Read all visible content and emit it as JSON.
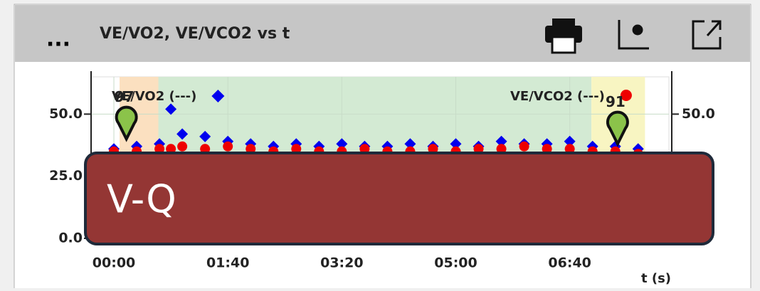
{
  "header": {
    "menu": "...",
    "title": "VE/VO2, VE/VCO2 vs t"
  },
  "chart_data": {
    "type": "scatter",
    "xlabel": "t (s)",
    "xlim": [
      -20,
      487
    ],
    "xticks": [
      {
        "value": 0,
        "label": "00:00"
      },
      {
        "value": 100,
        "label": "01:40"
      },
      {
        "value": 200,
        "label": "03:20"
      },
      {
        "value": 300,
        "label": "05:00"
      },
      {
        "value": 400,
        "label": "06:40"
      }
    ],
    "ylim": [
      0,
      65
    ],
    "yticks": [
      {
        "value": 0,
        "label": "0.0"
      },
      {
        "value": 25,
        "label": "25.0"
      },
      {
        "value": 50,
        "label": "50.0"
      }
    ],
    "y2lim": [
      0,
      65
    ],
    "y2ticks": [
      {
        "value": 50,
        "label": "50.0"
      }
    ],
    "regions": [
      {
        "start": 5,
        "end": 39,
        "color": "#fbe0c0"
      },
      {
        "start": 39,
        "end": 419,
        "color": "#d3ead3"
      },
      {
        "start": 419,
        "end": 466,
        "color": "#f8f5c2"
      }
    ],
    "series": [
      {
        "name": "VE/VO2 (---)",
        "color": "#0000ee",
        "marker": "diamond",
        "x": [
          0,
          20,
          40,
          50,
          60,
          80,
          100,
          120,
          140,
          160,
          180,
          200,
          220,
          240,
          260,
          280,
          300,
          320,
          340,
          360,
          380,
          400,
          420,
          440,
          460
        ],
        "values": [
          36,
          37,
          38,
          52,
          42,
          41,
          39,
          38,
          37,
          38,
          37,
          38,
          37,
          37,
          38,
          37,
          38,
          37,
          39,
          38,
          38,
          39,
          37,
          37,
          36
        ]
      },
      {
        "name": "VE/VCO2 (---)",
        "color": "#ee0000",
        "marker": "circle",
        "x": [
          0,
          20,
          40,
          50,
          60,
          80,
          100,
          120,
          140,
          160,
          180,
          200,
          220,
          240,
          260,
          280,
          300,
          320,
          340,
          360,
          380,
          400,
          420,
          440,
          460
        ],
        "values": [
          35,
          35,
          36,
          36,
          37,
          36,
          37,
          36,
          35,
          36,
          35,
          35,
          36,
          35,
          35,
          36,
          35,
          36,
          36,
          37,
          36,
          36,
          35,
          35,
          34
        ]
      }
    ],
    "markers": [
      {
        "label": "97",
        "x": 11,
        "value": 40,
        "color": "#8bc34a"
      },
      {
        "label": "91",
        "x": 442,
        "value": 38,
        "color": "#8bc34a"
      }
    ]
  },
  "overlay": {
    "label": "V-Q"
  }
}
